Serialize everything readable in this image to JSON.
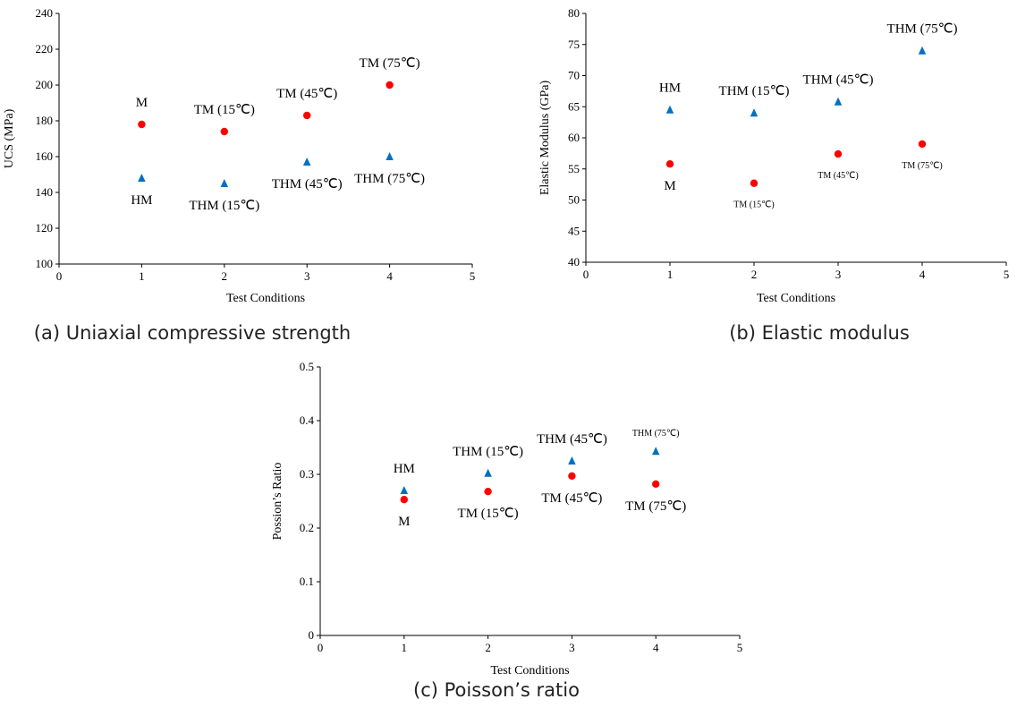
{
  "chart_data": [
    {
      "id": "a",
      "type": "scatter",
      "caption": "(a) Uniaxial compressive strength",
      "xlabel": "Test Conditions",
      "ylabel": "UCS (MPa)",
      "xlim": [
        0,
        5
      ],
      "ylim": [
        100,
        240
      ],
      "xticks": [
        0,
        1,
        2,
        3,
        4,
        5
      ],
      "yticks": [
        100,
        120,
        140,
        160,
        180,
        200,
        220,
        240
      ],
      "grid": false,
      "legend": "none",
      "series": [
        {
          "marker": "circle",
          "color": "#ff0000",
          "points": [
            {
              "x": 1,
              "y": 178
            },
            {
              "x": 2,
              "y": 174
            },
            {
              "x": 3,
              "y": 183
            },
            {
              "x": 4,
              "y": 200
            }
          ],
          "labels": [
            "M",
            "TM (15℃)",
            "TM (45℃)",
            "TM (75℃)"
          ],
          "label_position": "above"
        },
        {
          "marker": "triangle",
          "color": "#0070c0",
          "points": [
            {
              "x": 1,
              "y": 148
            },
            {
              "x": 2,
              "y": 145
            },
            {
              "x": 3,
              "y": 157
            },
            {
              "x": 4,
              "y": 160
            }
          ],
          "labels": [
            "HM",
            "THM (15℃)",
            "THM (45℃)",
            "THM (75℃)"
          ],
          "label_position": "below"
        }
      ]
    },
    {
      "id": "b",
      "type": "scatter",
      "caption": "(b) Elastic modulus",
      "xlabel": "Test Conditions",
      "ylabel": "Elastic Modulus (GPa)",
      "xlim": [
        0,
        5
      ],
      "ylim": [
        40,
        80
      ],
      "xticks": [
        0,
        1,
        2,
        3,
        4,
        5
      ],
      "yticks": [
        40,
        45,
        50,
        55,
        60,
        65,
        70,
        75,
        80
      ],
      "grid": false,
      "legend": "none",
      "series": [
        {
          "marker": "circle",
          "color": "#ff0000",
          "points": [
            {
              "x": 1,
              "y": 55.8
            },
            {
              "x": 2,
              "y": 52.7
            },
            {
              "x": 3,
              "y": 57.4
            },
            {
              "x": 4,
              "y": 59
            }
          ],
          "labels": [
            "M",
            "TM (15℃)",
            "TM (45℃)",
            "TM (75℃)"
          ],
          "label_position": "below"
        },
        {
          "marker": "triangle",
          "color": "#0070c0",
          "points": [
            {
              "x": 1,
              "y": 64.5
            },
            {
              "x": 2,
              "y": 64
            },
            {
              "x": 3,
              "y": 65.8
            },
            {
              "x": 4,
              "y": 74
            }
          ],
          "labels": [
            "HM",
            "THM (15℃)",
            "THM (45℃)",
            "THM (75℃)"
          ],
          "label_position": "above"
        }
      ]
    },
    {
      "id": "c",
      "type": "scatter",
      "caption": "(c) Poisson’s ratio",
      "xlabel": "Test Conditions",
      "ylabel": "Possion’s Ratio",
      "xlim": [
        0,
        5
      ],
      "ylim": [
        0,
        0.5
      ],
      "xticks": [
        0,
        1,
        2,
        3,
        4,
        5
      ],
      "yticks": [
        0,
        0.1,
        0.2,
        0.3,
        0.4,
        0.5
      ],
      "grid": false,
      "legend": "none",
      "series": [
        {
          "marker": "circle",
          "color": "#ff0000",
          "points": [
            {
              "x": 1,
              "y": 0.253
            },
            {
              "x": 2,
              "y": 0.268
            },
            {
              "x": 3,
              "y": 0.297
            },
            {
              "x": 4,
              "y": 0.282
            }
          ],
          "labels": [
            "M",
            "TM (15℃)",
            "TM (45℃)",
            "TM (75℃)"
          ],
          "label_position": "below"
        },
        {
          "marker": "triangle",
          "color": "#0070c0",
          "points": [
            {
              "x": 1,
              "y": 0.27
            },
            {
              "x": 2,
              "y": 0.302
            },
            {
              "x": 3,
              "y": 0.325
            },
            {
              "x": 4,
              "y": 0.343
            }
          ],
          "labels": [
            "HM",
            "THM (15℃)",
            "THM (45℃)",
            "THM (75℃)"
          ],
          "label_position": "above"
        }
      ]
    }
  ]
}
